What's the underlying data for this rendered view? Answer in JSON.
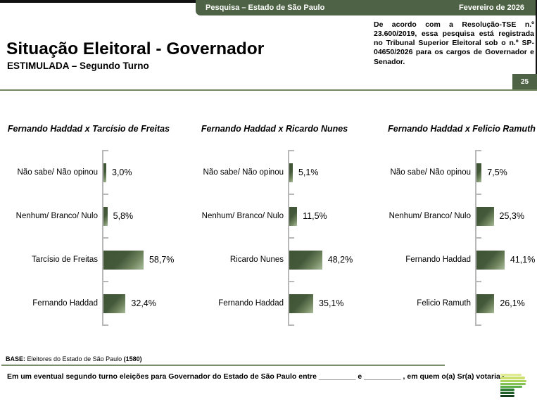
{
  "header": {
    "band_label": "Pesquisa – Estado de São Paulo",
    "band_date": "Fevereiro de 2026",
    "title": "Situação Eleitoral - Governador",
    "subtitle": "ESTIMULADA – Segundo Turno",
    "registration_note": "De acordo com a Resolução-TSE n.º 23.600/2019, essa pesquisa está registrada no Tribunal Superior Eleitoral sob o n.º SP-04650/2026 para os cargos de Governador e Senador.",
    "page_number": "25"
  },
  "colors": {
    "brand_green": "#4e6345",
    "bar_gradient_dark": "#3e5434",
    "bar_gradient_light": "#a9bd9c",
    "axis_gray": "#b8b8b8",
    "separator_green": "#72875f"
  },
  "chart_data": [
    {
      "type": "bar",
      "orientation": "horizontal",
      "title": "Fernando Haddad x Tarcísio de Freitas",
      "categories": [
        "Não sabe/ Não opinou",
        "Nenhum/ Branco/ Nulo",
        "Tarcísio de Freitas",
        "Fernando Haddad"
      ],
      "values": [
        3.0,
        5.8,
        58.7,
        32.4
      ],
      "value_labels": [
        "3,0%",
        "5,8%",
        "58,7%",
        "32,4%"
      ],
      "xlim": [
        0,
        100
      ],
      "grid": false,
      "legend": false
    },
    {
      "type": "bar",
      "orientation": "horizontal",
      "title": "Fernando Haddad x Ricardo Nunes",
      "categories": [
        "Não sabe/ Não opinou",
        "Nenhum/ Branco/ Nulo",
        "Ricardo Nunes",
        "Fernando Haddad"
      ],
      "values": [
        5.1,
        11.5,
        48.2,
        35.1
      ],
      "value_labels": [
        "5,1%",
        "11,5%",
        "48,2%",
        "35,1%"
      ],
      "xlim": [
        0,
        100
      ],
      "grid": false,
      "legend": false
    },
    {
      "type": "bar",
      "orientation": "horizontal",
      "title": "Fernando Haddad x Felicio Ramuth",
      "categories": [
        "Não sabe/ Não opinou",
        "Nenhum/ Branco/ Nulo",
        "Fernando Haddad",
        "Felicio Ramuth"
      ],
      "values": [
        7.5,
        25.3,
        41.1,
        26.1
      ],
      "value_labels": [
        "7,5%",
        "25,3%",
        "41,1%",
        "26,1%"
      ],
      "xlim": [
        0,
        100
      ],
      "grid": false,
      "legend": false
    }
  ],
  "footer": {
    "base_prefix": "BASE:",
    "base_text": " Eleitores do Estado de São Paulo ",
    "base_count": "(1580)",
    "question": "Em um eventual segundo turno eleições para Governador do Estado de São Paulo entre _________ e _________ , em quem o(a) Sr(a) votaria?"
  },
  "logo": {
    "name": "ipec-logo",
    "stripes": [
      {
        "color": "#e0ea92",
        "width": 30
      },
      {
        "color": "#cde06e",
        "width": 35
      },
      {
        "color": "#abd35f",
        "width": 37
      },
      {
        "color": "#84c253",
        "width": 36
      },
      {
        "color": "#5bae47",
        "width": 31
      },
      {
        "color": "#2f7c36",
        "width": 20
      },
      {
        "color": "#1f5f2a",
        "width": 20
      },
      {
        "color": "#143f1d",
        "width": 20
      }
    ]
  }
}
